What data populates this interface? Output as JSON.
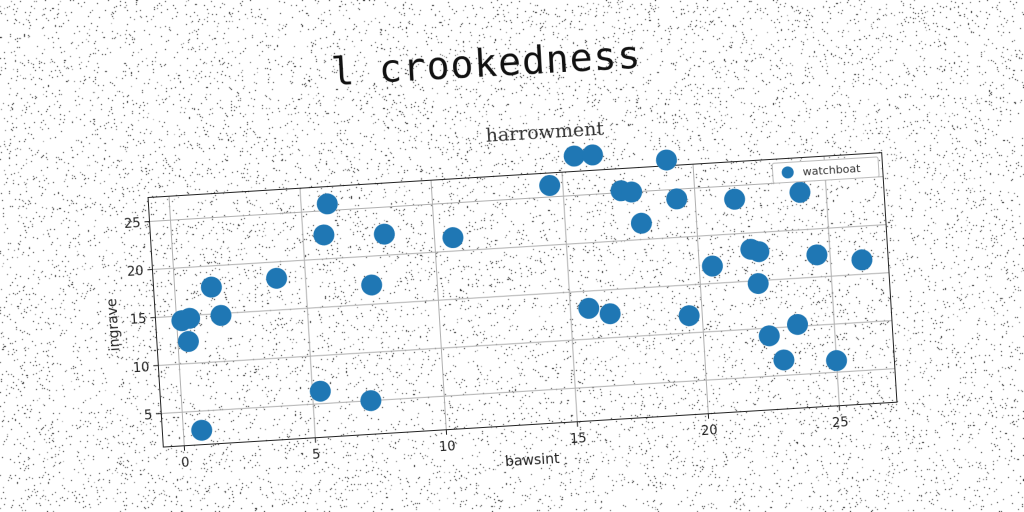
{
  "page": {
    "main_title": "l crookedness"
  },
  "chart_data": {
    "type": "scatter",
    "title": "harrowment",
    "xlabel": "bawsint",
    "ylabel": "ingrave",
    "xlim": [
      -0.8,
      27.2
    ],
    "ylim": [
      1.5,
      27.5
    ],
    "xticks": [
      0,
      5,
      10,
      15,
      20,
      25
    ],
    "yticks": [
      5,
      10,
      15,
      20,
      25
    ],
    "grid": true,
    "legend_position": "top-right",
    "colors": {
      "marker": "#1f77b4",
      "grid": "#b0b0b0",
      "axis": "#222222"
    },
    "series": [
      {
        "name": "watchboat",
        "points": [
          [
            0.2,
            14.5
          ],
          [
            0.5,
            14.7
          ],
          [
            0.4,
            12.3
          ],
          [
            0.7,
            3.0
          ],
          [
            1.4,
            17.8
          ],
          [
            1.7,
            14.8
          ],
          [
            3.9,
            18.3
          ],
          [
            5.3,
            6.3
          ],
          [
            5.8,
            22.5
          ],
          [
            6.0,
            25.7
          ],
          [
            7.2,
            5.0
          ],
          [
            7.5,
            17.0
          ],
          [
            8.1,
            22.2
          ],
          [
            10.7,
            21.4
          ],
          [
            14.5,
            26.2
          ],
          [
            15.5,
            29.1
          ],
          [
            16.2,
            29.1
          ],
          [
            15.7,
            13.2
          ],
          [
            16.5,
            12.5
          ],
          [
            17.2,
            25.2
          ],
          [
            17.6,
            25.0
          ],
          [
            17.9,
            21.7
          ],
          [
            19.0,
            28.1
          ],
          [
            19.3,
            24.0
          ],
          [
            19.5,
            11.8
          ],
          [
            20.5,
            16.8
          ],
          [
            21.5,
            23.6
          ],
          [
            22.0,
            18.3
          ],
          [
            22.3,
            18.0
          ],
          [
            22.2,
            14.7
          ],
          [
            22.5,
            9.2
          ],
          [
            23.0,
            6.6
          ],
          [
            23.6,
            10.2
          ],
          [
            24.0,
            23.9
          ],
          [
            24.5,
            17.3
          ],
          [
            25.0,
            6.2
          ],
          [
            26.2,
            16.5
          ]
        ]
      }
    ]
  }
}
